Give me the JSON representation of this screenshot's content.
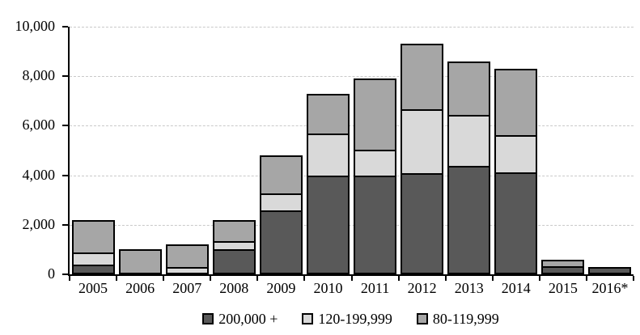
{
  "chart_data": {
    "type": "bar",
    "subtype": "stacked-vertical",
    "title": "",
    "xlabel": "",
    "ylabel": "",
    "categories": [
      "2005",
      "2006",
      "2007",
      "2008",
      "2009",
      "2010",
      "2011",
      "2012",
      "2013",
      "2014",
      "2015",
      "2016*"
    ],
    "series": [
      {
        "name": "200,000 +",
        "color": "#595959",
        "values": [
          300,
          0,
          0,
          1000,
          2600,
          4000,
          4000,
          4050,
          4400,
          4100,
          300,
          300
        ]
      },
      {
        "name": "120-199,999",
        "color": "#d9d9d9",
        "values": [
          500,
          0,
          200,
          300,
          650,
          1700,
          1000,
          2600,
          2050,
          1500,
          0,
          0
        ]
      },
      {
        "name": "80-119,999",
        "color": "#a6a6a6",
        "values": [
          1400,
          1000,
          1000,
          900,
          1550,
          1600,
          2900,
          2650,
          2150,
          2700,
          300,
          0
        ]
      }
    ],
    "stack_order_bottom_to_top": [
      "200,000 +",
      "120-199,999",
      "80-119,999"
    ],
    "totals": [
      2200,
      1000,
      1200,
      2200,
      4800,
      7300,
      7900,
      9300,
      8600,
      8300,
      600,
      300
    ],
    "ylim": [
      0,
      10000
    ],
    "ytick_interval": 2000,
    "ytick_labels": [
      "0",
      "2,000",
      "4,000",
      "6,000",
      "8,000",
      "10,000"
    ],
    "grid": "horizontal-dashed",
    "grid_color": "#c9c9c9",
    "axis_color": "#000000",
    "bar_border_color": "#000000",
    "legend_position": "bottom",
    "legend_labels": [
      "200,000 +",
      "120-199,999",
      "80-119,999"
    ]
  }
}
